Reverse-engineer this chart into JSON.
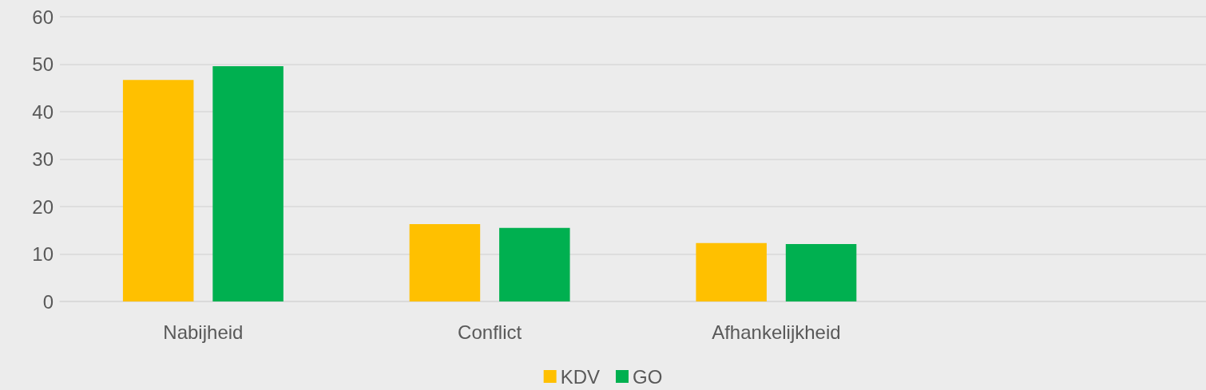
{
  "chart_data": {
    "type": "bar",
    "categories": [
      "Nabijheid",
      "Conflict",
      "Afhankelijkheid",
      null
    ],
    "series": [
      {
        "name": "KDV",
        "color": "#ffc000",
        "values": [
          46.7,
          16.3,
          12.3,
          null
        ]
      },
      {
        "name": "GO",
        "color": "#00b050",
        "values": [
          49.6,
          15.5,
          12.1,
          null
        ]
      }
    ],
    "ylim": [
      0,
      60
    ],
    "yticks": [
      0,
      10,
      20,
      30,
      40,
      50,
      60
    ],
    "grid": "y",
    "legend": "bottom"
  }
}
